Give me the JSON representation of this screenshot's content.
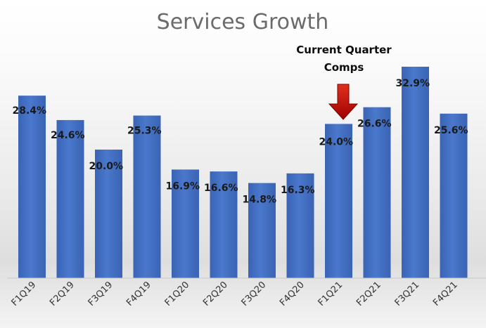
{
  "chart_data": {
    "type": "bar",
    "title": "Services Growth",
    "categories": [
      "F1Q19",
      "F2Q19",
      "F3Q19",
      "F4Q19",
      "F1Q20",
      "F2Q20",
      "F3Q20",
      "F4Q20",
      "F1Q21",
      "F2Q21",
      "F3Q21",
      "F4Q21"
    ],
    "values": [
      28.4,
      24.6,
      20.0,
      25.3,
      16.9,
      16.6,
      14.8,
      16.3,
      24.0,
      26.6,
      32.9,
      25.6
    ],
    "data_labels": [
      "28.4%",
      "24.6%",
      "20.0%",
      "25.3%",
      "16.9%",
      "16.6%",
      "14.8%",
      "16.3%",
      "24.0%",
      "26.6%",
      "32.9%",
      "25.6%"
    ],
    "xlabel": "",
    "ylabel": "",
    "ylim": [
      0,
      36.7
    ],
    "grid": false,
    "legend": "none",
    "bar_color": "#4472c4",
    "annotation": {
      "line1": "Current Quarter",
      "line2": "Comps",
      "target_category": "F1Q21",
      "arrow_color": "#c00000"
    }
  }
}
